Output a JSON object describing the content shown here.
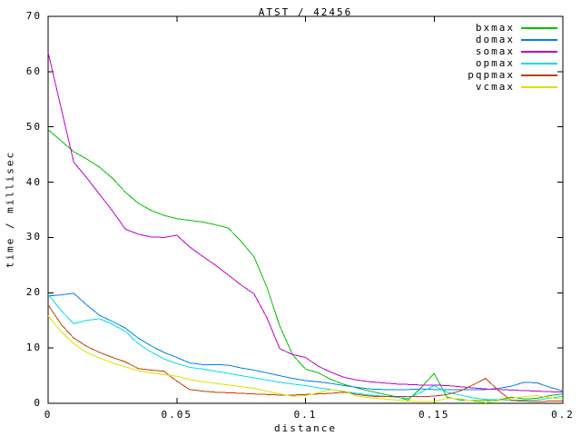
{
  "chart_data": {
    "type": "line",
    "title": "ATST / 42456",
    "xlabel": "distance",
    "ylabel": "time / millisec",
    "xlim": [
      0,
      0.2
    ],
    "ylim": [
      0,
      70
    ],
    "grid": false,
    "legend_position": "inside-top-right",
    "axis_color": "#000000",
    "background_color": "#ffffff",
    "x_ticks": [
      0,
      0.05,
      0.1,
      0.15,
      0.2
    ],
    "x_tick_labels": [
      "0",
      "0.05",
      "0.1",
      "0.15",
      "0.2"
    ],
    "y_ticks": [
      0,
      10,
      20,
      30,
      40,
      50,
      60,
      70
    ],
    "y_tick_labels": [
      "0",
      "10",
      "20",
      "30",
      "40",
      "50",
      "60",
      "70"
    ],
    "series": [
      {
        "name": "bxmax",
        "color": "#00c000",
        "points": [
          [
            0,
            49.5
          ],
          [
            0.005,
            47.5
          ],
          [
            0.01,
            45.5
          ],
          [
            0.015,
            44.2
          ],
          [
            0.02,
            42.7
          ],
          [
            0.025,
            40.7
          ],
          [
            0.03,
            38.2
          ],
          [
            0.035,
            36.2
          ],
          [
            0.04,
            34.9
          ],
          [
            0.045,
            34.0
          ],
          [
            0.05,
            33.4
          ],
          [
            0.055,
            33.1
          ],
          [
            0.06,
            32.8
          ],
          [
            0.065,
            32.3
          ],
          [
            0.07,
            31.7
          ],
          [
            0.075,
            29.3
          ],
          [
            0.08,
            26.5
          ],
          [
            0.085,
            21.0
          ],
          [
            0.09,
            14.0
          ],
          [
            0.095,
            8.8
          ],
          [
            0.1,
            6.2
          ],
          [
            0.105,
            5.5
          ],
          [
            0.11,
            4.3
          ],
          [
            0.115,
            3.4
          ],
          [
            0.12,
            2.8
          ],
          [
            0.125,
            2.2
          ],
          [
            0.13,
            1.7
          ],
          [
            0.135,
            1.2
          ],
          [
            0.14,
            0.6
          ],
          [
            0.145,
            2.9
          ],
          [
            0.15,
            5.4
          ],
          [
            0.155,
            1.1
          ],
          [
            0.16,
            0.6
          ],
          [
            0.165,
            0.5
          ],
          [
            0.17,
            0.5
          ],
          [
            0.175,
            0.6
          ],
          [
            0.18,
            1.1
          ],
          [
            0.185,
            0.8
          ],
          [
            0.19,
            0.9
          ],
          [
            0.195,
            1.4
          ],
          [
            0.2,
            1.7
          ]
        ]
      },
      {
        "name": "domax",
        "color": "#0080f0",
        "points": [
          [
            0,
            19.4
          ],
          [
            0.005,
            19.6
          ],
          [
            0.01,
            19.9
          ],
          [
            0.015,
            17.8
          ],
          [
            0.02,
            15.9
          ],
          [
            0.025,
            14.8
          ],
          [
            0.03,
            13.6
          ],
          [
            0.035,
            11.8
          ],
          [
            0.04,
            10.4
          ],
          [
            0.045,
            9.2
          ],
          [
            0.05,
            8.3
          ],
          [
            0.055,
            7.3
          ],
          [
            0.06,
            7.0
          ],
          [
            0.065,
            7.0
          ],
          [
            0.07,
            6.9
          ],
          [
            0.075,
            6.4
          ],
          [
            0.08,
            6.0
          ],
          [
            0.085,
            5.5
          ],
          [
            0.09,
            5.0
          ],
          [
            0.095,
            4.5
          ],
          [
            0.1,
            4.1
          ],
          [
            0.105,
            3.9
          ],
          [
            0.11,
            3.6
          ],
          [
            0.115,
            3.2
          ],
          [
            0.12,
            2.9
          ],
          [
            0.125,
            2.6
          ],
          [
            0.13,
            2.5
          ],
          [
            0.135,
            2.5
          ],
          [
            0.14,
            2.5
          ],
          [
            0.145,
            2.6
          ],
          [
            0.15,
            2.5
          ],
          [
            0.155,
            2.5
          ],
          [
            0.16,
            2.5
          ],
          [
            0.165,
            2.5
          ],
          [
            0.17,
            2.5
          ],
          [
            0.175,
            2.7
          ],
          [
            0.18,
            3.1
          ],
          [
            0.185,
            3.8
          ],
          [
            0.19,
            3.7
          ],
          [
            0.195,
            2.9
          ],
          [
            0.2,
            2.2
          ]
        ]
      },
      {
        "name": "somax",
        "color": "#c000d0",
        "points": [
          [
            0,
            63.5
          ],
          [
            0.005,
            53.5
          ],
          [
            0.01,
            43.6
          ],
          [
            0.015,
            40.8
          ],
          [
            0.02,
            37.8
          ],
          [
            0.025,
            34.8
          ],
          [
            0.03,
            31.5
          ],
          [
            0.035,
            30.6
          ],
          [
            0.04,
            30.1
          ],
          [
            0.045,
            30.0
          ],
          [
            0.05,
            30.4
          ],
          [
            0.055,
            28.3
          ],
          [
            0.06,
            26.6
          ],
          [
            0.065,
            25.0
          ],
          [
            0.07,
            23.2
          ],
          [
            0.075,
            21.4
          ],
          [
            0.08,
            19.8
          ],
          [
            0.085,
            15.5
          ],
          [
            0.09,
            9.9
          ],
          [
            0.095,
            8.8
          ],
          [
            0.1,
            8.3
          ],
          [
            0.105,
            6.7
          ],
          [
            0.11,
            5.6
          ],
          [
            0.115,
            4.7
          ],
          [
            0.12,
            4.2
          ],
          [
            0.125,
            3.9
          ],
          [
            0.13,
            3.7
          ],
          [
            0.135,
            3.5
          ],
          [
            0.14,
            3.4
          ],
          [
            0.145,
            3.3
          ],
          [
            0.15,
            3.3
          ],
          [
            0.155,
            3.2
          ],
          [
            0.16,
            3.0
          ],
          [
            0.165,
            2.8
          ],
          [
            0.17,
            2.6
          ],
          [
            0.175,
            2.5
          ],
          [
            0.18,
            2.4
          ],
          [
            0.185,
            2.3
          ],
          [
            0.19,
            2.2
          ],
          [
            0.195,
            2.1
          ],
          [
            0.2,
            2.0
          ]
        ]
      },
      {
        "name": "opmax",
        "color": "#00e0e0",
        "points": [
          [
            0,
            19.7
          ],
          [
            0.005,
            16.8
          ],
          [
            0.01,
            14.4
          ],
          [
            0.015,
            15.0
          ],
          [
            0.02,
            15.3
          ],
          [
            0.025,
            14.3
          ],
          [
            0.03,
            13.0
          ],
          [
            0.035,
            10.8
          ],
          [
            0.04,
            9.3
          ],
          [
            0.045,
            8.0
          ],
          [
            0.05,
            7.2
          ],
          [
            0.055,
            6.5
          ],
          [
            0.06,
            6.2
          ],
          [
            0.065,
            5.8
          ],
          [
            0.07,
            5.4
          ],
          [
            0.075,
            5.0
          ],
          [
            0.08,
            4.6
          ],
          [
            0.085,
            4.2
          ],
          [
            0.09,
            3.8
          ],
          [
            0.095,
            3.5
          ],
          [
            0.1,
            3.2
          ],
          [
            0.105,
            2.8
          ],
          [
            0.11,
            2.5
          ],
          [
            0.115,
            2.1
          ],
          [
            0.12,
            1.8
          ],
          [
            0.125,
            1.5
          ],
          [
            0.13,
            1.3
          ],
          [
            0.135,
            1.1
          ],
          [
            0.14,
            0.9
          ],
          [
            0.145,
            2.0
          ],
          [
            0.15,
            3.2
          ],
          [
            0.155,
            2.0
          ],
          [
            0.16,
            1.5
          ],
          [
            0.165,
            1.0
          ],
          [
            0.17,
            0.7
          ],
          [
            0.175,
            0.6
          ],
          [
            0.18,
            0.6
          ],
          [
            0.185,
            0.6
          ],
          [
            0.19,
            0.6
          ],
          [
            0.195,
            0.9
          ],
          [
            0.2,
            1.3
          ]
        ]
      },
      {
        "name": "pqpmax",
        "color": "#c04000",
        "points": [
          [
            0,
            17.8
          ],
          [
            0.005,
            14.3
          ],
          [
            0.01,
            11.8
          ],
          [
            0.015,
            10.3
          ],
          [
            0.02,
            9.2
          ],
          [
            0.025,
            8.3
          ],
          [
            0.03,
            7.5
          ],
          [
            0.035,
            6.3
          ],
          [
            0.04,
            6.0
          ],
          [
            0.045,
            5.8
          ],
          [
            0.05,
            4.0
          ],
          [
            0.055,
            2.5
          ],
          [
            0.06,
            2.2
          ],
          [
            0.065,
            2.0
          ],
          [
            0.07,
            1.9
          ],
          [
            0.075,
            1.8
          ],
          [
            0.08,
            1.7
          ],
          [
            0.085,
            1.6
          ],
          [
            0.09,
            1.5
          ],
          [
            0.095,
            1.5
          ],
          [
            0.1,
            1.6
          ],
          [
            0.105,
            1.7
          ],
          [
            0.11,
            1.8
          ],
          [
            0.115,
            2.0
          ],
          [
            0.12,
            1.6
          ],
          [
            0.125,
            1.3
          ],
          [
            0.13,
            1.2
          ],
          [
            0.135,
            1.2
          ],
          [
            0.14,
            1.2
          ],
          [
            0.145,
            1.2
          ],
          [
            0.15,
            1.3
          ],
          [
            0.155,
            1.6
          ],
          [
            0.16,
            2.2
          ],
          [
            0.165,
            3.3
          ],
          [
            0.17,
            4.5
          ],
          [
            0.175,
            2.3
          ],
          [
            0.18,
            0.5
          ],
          [
            0.185,
            0.4
          ],
          [
            0.19,
            0.3
          ],
          [
            0.195,
            0.4
          ],
          [
            0.2,
            0.4
          ]
        ]
      },
      {
        "name": "vcmax",
        "color": "#e0e000",
        "points": [
          [
            0,
            15.8
          ],
          [
            0.005,
            13.0
          ],
          [
            0.01,
            10.8
          ],
          [
            0.015,
            9.2
          ],
          [
            0.02,
            8.2
          ],
          [
            0.025,
            7.3
          ],
          [
            0.03,
            6.6
          ],
          [
            0.035,
            5.9
          ],
          [
            0.04,
            5.5
          ],
          [
            0.045,
            5.2
          ],
          [
            0.05,
            4.9
          ],
          [
            0.055,
            4.3
          ],
          [
            0.06,
            3.9
          ],
          [
            0.065,
            3.6
          ],
          [
            0.07,
            3.3
          ],
          [
            0.075,
            3.0
          ],
          [
            0.08,
            2.7
          ],
          [
            0.085,
            2.2
          ],
          [
            0.09,
            1.7
          ],
          [
            0.095,
            1.3
          ],
          [
            0.1,
            1.4
          ],
          [
            0.105,
            1.9
          ],
          [
            0.11,
            2.5
          ],
          [
            0.115,
            2.2
          ],
          [
            0.12,
            1.3
          ],
          [
            0.125,
            1.0
          ],
          [
            0.13,
            0.8
          ],
          [
            0.135,
            0.6
          ],
          [
            0.14,
            0.4
          ],
          [
            0.145,
            0.3
          ],
          [
            0.15,
            0.3
          ],
          [
            0.155,
            0.9
          ],
          [
            0.16,
            0.8
          ],
          [
            0.165,
            0.4
          ],
          [
            0.17,
            0.1
          ],
          [
            0.175,
            0.5
          ],
          [
            0.18,
            0.9
          ],
          [
            0.185,
            1.2
          ],
          [
            0.19,
            1.4
          ],
          [
            0.195,
            1.0
          ],
          [
            0.2,
            0.8
          ]
        ]
      }
    ]
  }
}
